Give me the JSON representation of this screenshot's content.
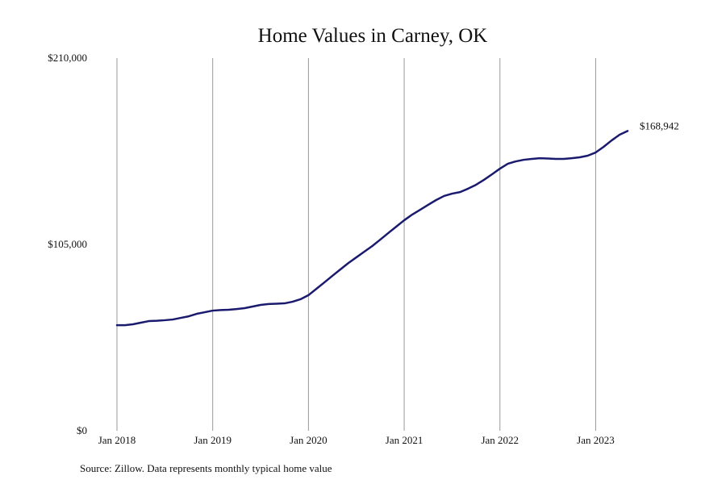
{
  "chart_data": {
    "type": "line",
    "title": "Home Values in Carney, OK",
    "note": "Source: Zillow. Data represents monthly typical home value",
    "x": [
      "2018-01",
      "2018-02",
      "2018-03",
      "2018-04",
      "2018-05",
      "2018-06",
      "2018-07",
      "2018-08",
      "2018-09",
      "2018-10",
      "2018-11",
      "2018-12",
      "2019-01",
      "2019-02",
      "2019-03",
      "2019-04",
      "2019-05",
      "2019-06",
      "2019-07",
      "2019-08",
      "2019-09",
      "2019-10",
      "2019-11",
      "2019-12",
      "2020-01",
      "2020-02",
      "2020-03",
      "2020-04",
      "2020-05",
      "2020-06",
      "2020-07",
      "2020-08",
      "2020-09",
      "2020-10",
      "2020-11",
      "2020-12",
      "2021-01",
      "2021-02",
      "2021-03",
      "2021-04",
      "2021-05",
      "2021-06",
      "2021-07",
      "2021-08",
      "2021-09",
      "2021-10",
      "2021-11",
      "2021-12",
      "2022-01",
      "2022-02",
      "2022-03",
      "2022-04",
      "2022-05",
      "2022-06",
      "2022-07",
      "2022-08",
      "2022-09",
      "2022-10",
      "2022-11",
      "2022-12",
      "2023-01",
      "2023-02",
      "2023-03",
      "2023-04",
      "2023-05"
    ],
    "series": [
      {
        "name": "Home value",
        "color": "#1a1a6e",
        "values": [
          59500,
          59500,
          60000,
          60900,
          61800,
          62000,
          62300,
          62700,
          63600,
          64500,
          65900,
          66800,
          67700,
          68000,
          68200,
          68600,
          69100,
          70000,
          70900,
          71400,
          71600,
          71800,
          72700,
          74100,
          76400,
          80000,
          83600,
          87300,
          90900,
          94500,
          97700,
          100900,
          104100,
          107700,
          111400,
          115000,
          118600,
          121800,
          124500,
          127300,
          130000,
          132300,
          133600,
          134500,
          136400,
          138600,
          141400,
          144500,
          147700,
          150500,
          151800,
          152700,
          153200,
          153600,
          153400,
          153200,
          153200,
          153600,
          154100,
          155000,
          156800,
          160000,
          163600,
          166800,
          168942
        ],
        "value_labels": [
          null,
          null,
          null,
          null,
          null,
          null,
          null,
          null,
          null,
          null,
          null,
          null,
          null,
          null,
          null,
          null,
          null,
          null,
          null,
          null,
          null,
          null,
          null,
          null,
          null,
          null,
          null,
          null,
          null,
          null,
          null,
          null,
          null,
          null,
          null,
          null,
          null,
          null,
          null,
          null,
          null,
          null,
          null,
          null,
          null,
          null,
          null,
          null,
          null,
          null,
          null,
          null,
          null,
          null,
          null,
          null,
          null,
          null,
          null,
          null,
          null,
          null,
          null,
          null,
          "$168,942"
        ]
      }
    ],
    "xlim": [
      "2018-01",
      "2023-05"
    ],
    "xticks": [
      {
        "value": "2018-01",
        "label": "Jan 2018"
      },
      {
        "value": "2019-01",
        "label": "Jan 2019"
      },
      {
        "value": "2020-01",
        "label": "Jan 2020"
      },
      {
        "value": "2021-01",
        "label": "Jan 2021"
      },
      {
        "value": "2022-01",
        "label": "Jan 2022"
      },
      {
        "value": "2023-01",
        "label": "Jan 2023"
      }
    ],
    "ylim": [
      0,
      210000
    ],
    "yticks": [
      {
        "value": 0,
        "label": "$0"
      },
      {
        "value": 105000,
        "label": "$105,000"
      },
      {
        "value": 210000,
        "label": "$210,000"
      }
    ],
    "grid": "x"
  }
}
